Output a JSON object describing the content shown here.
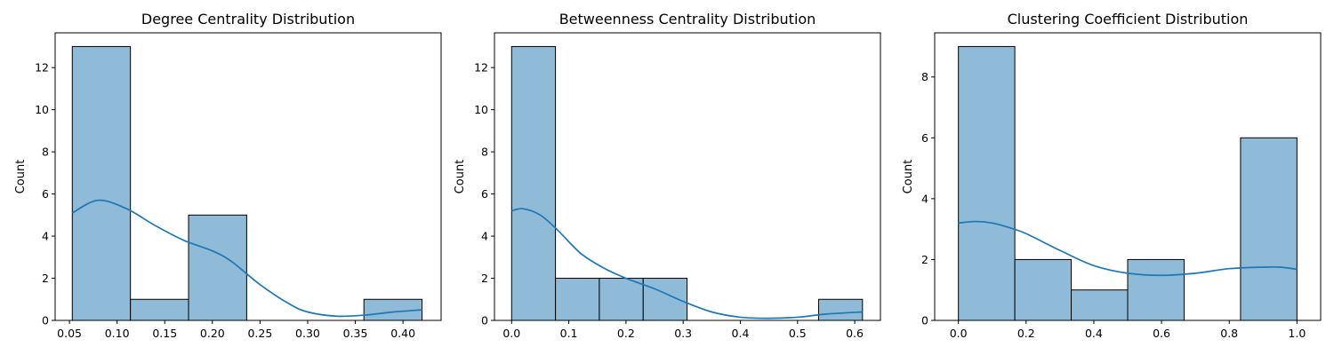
{
  "colors": {
    "bar_fill": "#8fbad8",
    "bar_edge": "#000000",
    "kde_line": "#1f77b4",
    "axes_edge": "#000000"
  },
  "chart_data": [
    {
      "type": "bar",
      "title": "Degree Centrality Distribution",
      "xlabel": "",
      "ylabel": "Count",
      "xlim": [
        0.035,
        0.44
      ],
      "ylim": [
        0,
        13.65
      ],
      "grid": false,
      "xticks": [
        0.05,
        0.1,
        0.15,
        0.2,
        0.25,
        0.3,
        0.35,
        0.4
      ],
      "xtick_labels": [
        "0.05",
        "0.10",
        "0.15",
        "0.20",
        "0.25",
        "0.30",
        "0.35",
        "0.40"
      ],
      "yticks": [
        0,
        2,
        4,
        6,
        8,
        10,
        12
      ],
      "ytick_labels": [
        "0",
        "2",
        "4",
        "6",
        "8",
        "10",
        "12"
      ],
      "bins": [
        {
          "x0": 0.053,
          "x1": 0.114,
          "count": 13
        },
        {
          "x0": 0.114,
          "x1": 0.175,
          "count": 1
        },
        {
          "x0": 0.175,
          "x1": 0.236,
          "count": 5
        },
        {
          "x0": 0.236,
          "x1": 0.297,
          "count": 0
        },
        {
          "x0": 0.297,
          "x1": 0.359,
          "count": 0
        },
        {
          "x0": 0.359,
          "x1": 0.42,
          "count": 1
        }
      ],
      "kde": {
        "x": [
          0.053,
          0.08,
          0.11,
          0.14,
          0.17,
          0.2,
          0.22,
          0.25,
          0.28,
          0.3,
          0.33,
          0.36,
          0.39,
          0.42
        ],
        "y": [
          5.1,
          5.7,
          5.3,
          4.5,
          3.8,
          3.3,
          2.8,
          1.7,
          0.8,
          0.4,
          0.2,
          0.25,
          0.4,
          0.5
        ]
      }
    },
    {
      "type": "bar",
      "title": "Betweenness Centrality Distribution",
      "xlabel": "",
      "ylabel": "Count",
      "xlim": [
        -0.03,
        0.645
      ],
      "ylim": [
        0,
        13.65
      ],
      "grid": false,
      "xticks": [
        0.0,
        0.1,
        0.2,
        0.3,
        0.4,
        0.5,
        0.6
      ],
      "xtick_labels": [
        "0.0",
        "0.1",
        "0.2",
        "0.3",
        "0.4",
        "0.5",
        "0.6"
      ],
      "yticks": [
        0,
        2,
        4,
        6,
        8,
        10,
        12
      ],
      "ytick_labels": [
        "0",
        "2",
        "4",
        "6",
        "8",
        "10",
        "12"
      ],
      "bins": [
        {
          "x0": 0.0,
          "x1": 0.0767,
          "count": 13
        },
        {
          "x0": 0.0767,
          "x1": 0.1534,
          "count": 2
        },
        {
          "x0": 0.1534,
          "x1": 0.2301,
          "count": 2
        },
        {
          "x0": 0.2301,
          "x1": 0.3068,
          "count": 2
        },
        {
          "x0": 0.3068,
          "x1": 0.3835,
          "count": 0
        },
        {
          "x0": 0.3835,
          "x1": 0.4602,
          "count": 0
        },
        {
          "x0": 0.4602,
          "x1": 0.5369,
          "count": 0
        },
        {
          "x0": 0.5369,
          "x1": 0.6136,
          "count": 1
        }
      ],
      "kde": {
        "x": [
          0.0,
          0.02,
          0.05,
          0.08,
          0.12,
          0.16,
          0.2,
          0.25,
          0.3,
          0.35,
          0.4,
          0.45,
          0.5,
          0.55,
          0.6136
        ],
        "y": [
          5.2,
          5.3,
          5.0,
          4.3,
          3.2,
          2.5,
          2.0,
          1.5,
          0.9,
          0.4,
          0.15,
          0.1,
          0.15,
          0.3,
          0.4
        ]
      }
    },
    {
      "type": "bar",
      "title": "Clustering Coefficient Distribution",
      "xlabel": "",
      "ylabel": "Count",
      "xlim": [
        -0.07,
        1.07
      ],
      "ylim": [
        0,
        9.45
      ],
      "grid": false,
      "xticks": [
        0.0,
        0.2,
        0.4,
        0.6,
        0.8,
        1.0
      ],
      "xtick_labels": [
        "0.0",
        "0.2",
        "0.4",
        "0.6",
        "0.8",
        "1.0"
      ],
      "yticks": [
        0,
        2,
        4,
        6,
        8
      ],
      "ytick_labels": [
        "0",
        "2",
        "4",
        "6",
        "8"
      ],
      "bins": [
        {
          "x0": 0.0,
          "x1": 0.1667,
          "count": 9
        },
        {
          "x0": 0.1667,
          "x1": 0.3333,
          "count": 2
        },
        {
          "x0": 0.3333,
          "x1": 0.5,
          "count": 1
        },
        {
          "x0": 0.5,
          "x1": 0.6667,
          "count": 2
        },
        {
          "x0": 0.6667,
          "x1": 0.8333,
          "count": 0
        },
        {
          "x0": 0.8333,
          "x1": 1.0,
          "count": 6
        }
      ],
      "kde": {
        "x": [
          0.0,
          0.05,
          0.1,
          0.15,
          0.2,
          0.3,
          0.4,
          0.5,
          0.6,
          0.7,
          0.8,
          0.9,
          0.95,
          1.0
        ],
        "y": [
          3.2,
          3.25,
          3.2,
          3.05,
          2.85,
          2.3,
          1.8,
          1.55,
          1.48,
          1.55,
          1.7,
          1.75,
          1.75,
          1.68
        ]
      }
    }
  ]
}
